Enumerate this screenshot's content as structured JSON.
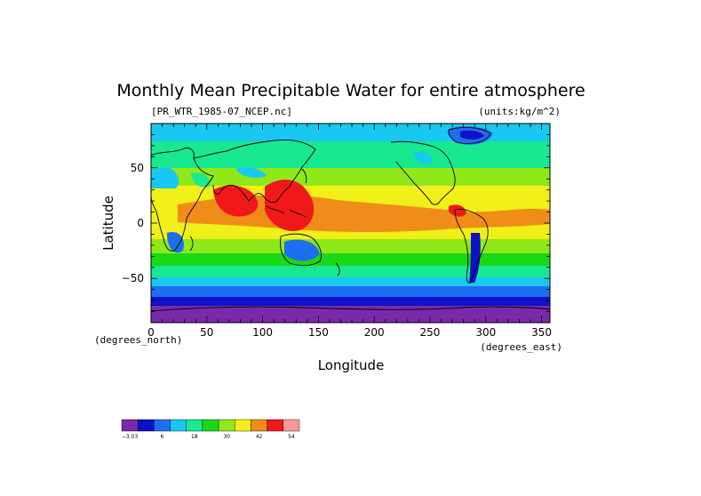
{
  "chart_data": {
    "type": "heatmap",
    "title": "Monthly Mean Precipitable Water for entire atmosphere",
    "subtitle_left": "[PR_WTR_1985-07_NCEP.nc]",
    "subtitle_right": "(units:kg/m^2)",
    "xlabel": "Longitude",
    "ylabel": "Latitude",
    "x_units": "(degrees_east)",
    "y_units": "(degrees_north)",
    "xlim": [
      0,
      357.5
    ],
    "ylim": [
      -90,
      90
    ],
    "xticks": [
      0,
      50,
      100,
      150,
      200,
      250,
      300,
      350
    ],
    "yticks": [
      -50,
      0,
      50
    ],
    "ytick_labels": [
      "−50",
      "0",
      "50"
    ],
    "xtick_labels": [
      "0",
      "50",
      "100",
      "150",
      "200",
      "250",
      "300",
      "350"
    ],
    "colorbar": {
      "colors": [
        "#7a2aa8",
        "#1010c8",
        "#1e6ef0",
        "#18c8f0",
        "#18e890",
        "#18d818",
        "#90e818",
        "#f0f018",
        "#f08c18",
        "#f01818",
        "#f49a9a"
      ],
      "tick_labels": [
        "−3.03",
        "6",
        "18",
        "30",
        "42",
        "54"
      ]
    }
  }
}
